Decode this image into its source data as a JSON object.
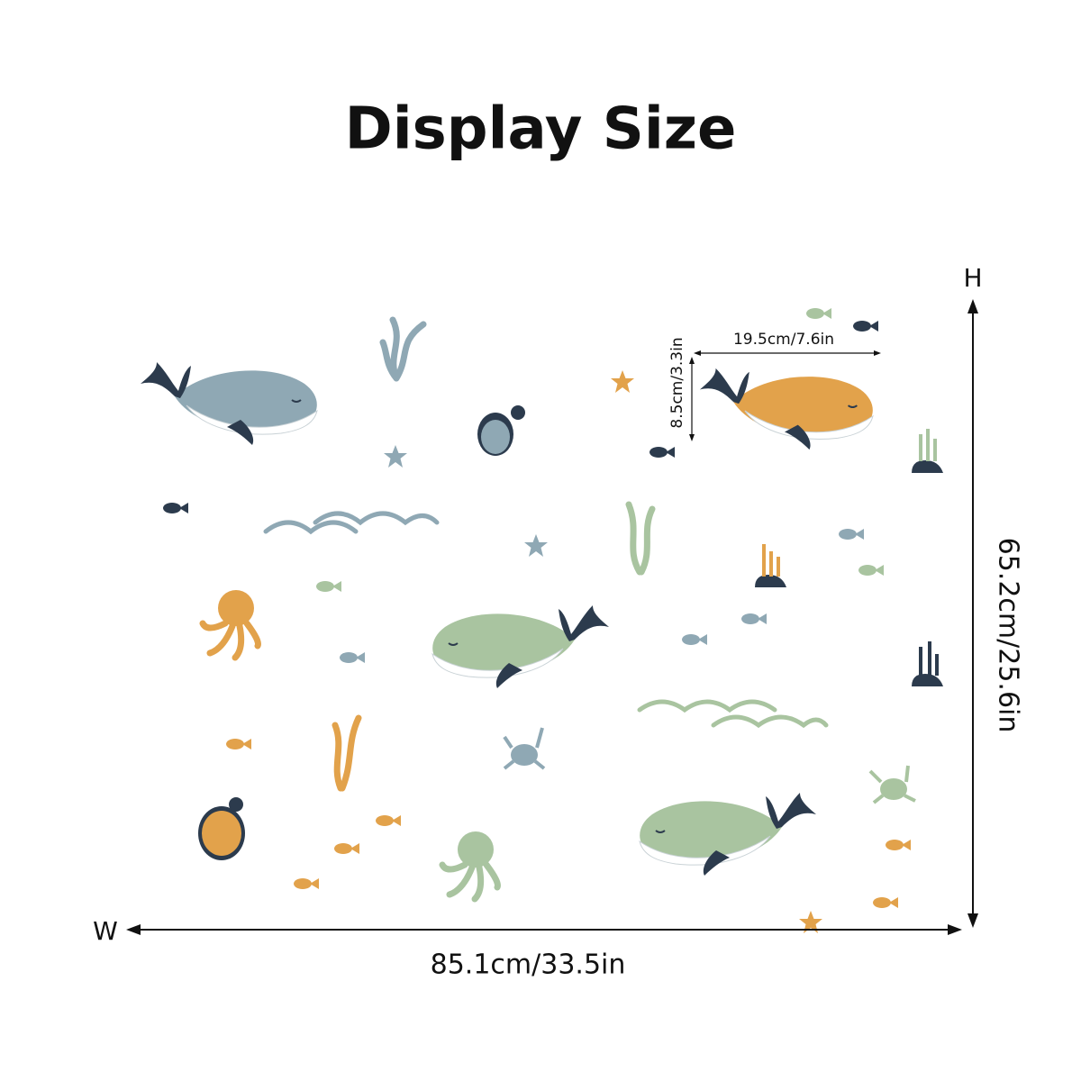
{
  "header": {
    "title": "Display Size"
  },
  "dimensions": {
    "width": {
      "letter": "W",
      "label": "85.1cm/33.5in"
    },
    "height": {
      "letter": "H",
      "label": "65.2cm/25.6in"
    }
  },
  "sample": {
    "width": "19.5cm/7.6in",
    "height": "8.5cm/3.3in"
  }
}
